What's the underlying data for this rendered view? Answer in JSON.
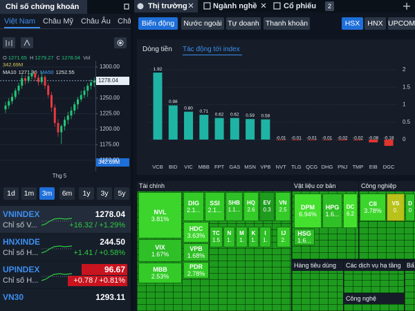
{
  "left_panel": {
    "title": "Chỉ số chứng khoán",
    "regions": [
      "Việt Nam",
      "Châu Mỹ",
      "Châu Âu",
      "Châ"
    ],
    "active_region": 0,
    "price_chart": {
      "type": "candlestick",
      "legend": [
        {
          "label": "O",
          "value": 1271.65
        },
        {
          "label": "H",
          "value": 1279.27
        },
        {
          "label": "C",
          "value": 1278.04
        },
        {
          "label": "Vol"
        }
      ],
      "volume": "342.69M",
      "ma": [
        {
          "name": "MA10",
          "value": "1271.90",
          "color": "#e8e8e8"
        },
        {
          "name": "MA50",
          "value": "1252.55",
          "color": "#4aa3ff"
        }
      ],
      "ylim": [
        1141,
        1310
      ],
      "yticks": [
        {
          "value": 1300,
          "label": "1300.00"
        },
        {
          "value": 1250,
          "label": "1250.00"
        },
        {
          "value": 1225,
          "label": "1225.00"
        },
        {
          "value": 1200,
          "label": "1200.00"
        },
        {
          "value": 1175,
          "label": "1175.00"
        },
        {
          "value": 1150,
          "label": "1150.00"
        }
      ],
      "last_price": 1278.04,
      "x_label": "Thg 5",
      "up_color": "#22c77a",
      "down_color": "#ea3943",
      "candles": [
        [
          1232,
          1244,
          1226,
          1238
        ],
        [
          1238,
          1250,
          1233,
          1245
        ],
        [
          1245,
          1258,
          1240,
          1252
        ],
        [
          1252,
          1266,
          1248,
          1262
        ],
        [
          1262,
          1275,
          1256,
          1270
        ],
        [
          1270,
          1288,
          1265,
          1282
        ],
        [
          1282,
          1286,
          1272,
          1278
        ],
        [
          1278,
          1292,
          1274,
          1285
        ],
        [
          1285,
          1296,
          1280,
          1290
        ],
        [
          1290,
          1294,
          1278,
          1283
        ],
        [
          1283,
          1288,
          1270,
          1276
        ],
        [
          1276,
          1291,
          1272,
          1284
        ],
        [
          1284,
          1287,
          1265,
          1270
        ],
        [
          1270,
          1274,
          1250,
          1255
        ],
        [
          1255,
          1260,
          1228,
          1235
        ],
        [
          1235,
          1240,
          1204,
          1210
        ],
        [
          1210,
          1216,
          1188,
          1195
        ],
        [
          1195,
          1208,
          1176,
          1205
        ],
        [
          1205,
          1220,
          1198,
          1215
        ],
        [
          1215,
          1228,
          1208,
          1222
        ],
        [
          1222,
          1236,
          1216,
          1230
        ],
        [
          1230,
          1244,
          1224,
          1240
        ],
        [
          1240,
          1252,
          1232,
          1248
        ],
        [
          1248,
          1262,
          1244,
          1255
        ],
        [
          1255,
          1268,
          1250,
          1262
        ],
        [
          1262,
          1274,
          1252,
          1270
        ],
        [
          1270,
          1280,
          1264,
          1275
        ],
        [
          1275,
          1283,
          1268,
          1278
        ]
      ]
    },
    "periods": [
      "1d",
      "1m",
      "3m",
      "6m",
      "1y",
      "3y",
      "5y"
    ],
    "active_period": 2,
    "indices": [
      {
        "name": "VNINDEX",
        "value": "1278.04",
        "desc": "Chỉ số V...",
        "change": "+16.32 / +1.29%"
      },
      {
        "name": "HNXINDE",
        "value": "244.50",
        "desc": "Chỉ số H...",
        "change": "+1.41 / +0.58%"
      },
      {
        "name": "UPINDEX",
        "value": "96.67",
        "desc": "Chỉ số H...",
        "change": "+0.78 / +0.81%",
        "highlight": true
      },
      {
        "name": "VN30",
        "value": "1293.11"
      }
    ]
  },
  "right_panel": {
    "tabs": [
      "Thị trường",
      "Ngành nghề",
      "Cổ phiếu"
    ],
    "tab_badge": "2",
    "filters": [
      "Biến động",
      "Nước ngoài",
      "Tự doanh",
      "Thanh khoản"
    ],
    "active_filter": 0,
    "exchanges": [
      "HSX",
      "HNX",
      "UPCOM"
    ],
    "active_exchange": 0,
    "subtabs": [
      "Dòng tiền",
      "Tác động tới index"
    ],
    "active_subtab": 1,
    "impact_chart": {
      "type": "bar",
      "categories": [
        "VCB",
        "BID",
        "VIC",
        "MBB",
        "FPT",
        "GAS",
        "MSN",
        "VPB",
        "NVT",
        "TLG",
        "QCG",
        "DHG",
        "PNJ",
        "TMP",
        "EIB",
        "DGC"
      ],
      "values": [
        1.92,
        0.98,
        0.8,
        0.71,
        0.62,
        0.62,
        0.59,
        0.58,
        -0.01,
        -0.01,
        -0.01,
        -0.01,
        -0.02,
        -0.02,
        -0.08,
        -0.18
      ],
      "value_labels": [
        "1.92",
        "0.98",
        "0.80",
        "0.71",
        "0.62",
        "0.62",
        "0.59",
        "0.58",
        "-0.01",
        "-0.01",
        "-0.01",
        "-0.01",
        "-0.02",
        "-0.02",
        "-0.08",
        "-0.18"
      ],
      "ylim": [
        -0.45,
        2.05
      ],
      "yticks": [
        2,
        1.5,
        1,
        0.5,
        0
      ],
      "grid": true,
      "positive_color": "#1fb3a4",
      "negative_color": "#e0342f"
    },
    "heatmap": {
      "sectors": [
        {
          "name": "Tài chính",
          "tiles": [
            {
              "symbol": "NVL",
              "change": "3.81%",
              "color": "#3bd52b"
            },
            {
              "symbol": "DIG",
              "change": "2.1...",
              "color": "#34cb29"
            },
            {
              "symbol": "SSI",
              "change": "2.1...",
              "color": "#34cb29"
            },
            {
              "symbol": "SHB",
              "change": "1.1...",
              "color": "#2fbf27"
            },
            {
              "symbol": "HQ",
              "change": "2.6",
              "color": "#34cb29"
            },
            {
              "symbol": "EV",
              "change": "0.3",
              "color": "#1f9c1f"
            },
            {
              "symbol": "VN",
              "change": "2.5",
              "color": "#34cb29"
            },
            {
              "symbol": "VIX",
              "change": "1.67%",
              "color": "#2fbf27"
            },
            {
              "symbol": "HDC",
              "change": "3.63%",
              "color": "#3bd52b"
            },
            {
              "symbol": "TC",
              "change": "1.5",
              "color": "#2fbf27"
            },
            {
              "symbol": "N",
              "change": "1.",
              "color": "#2fbf27"
            },
            {
              "symbol": "M",
              "change": "1.",
              "color": "#2fbf27"
            },
            {
              "symbol": "K",
              "change": "1.",
              "color": "#2fbf27"
            },
            {
              "symbol": "I",
              "change": "1.",
              "color": "#2fbf27"
            },
            {
              "symbol": "IJ",
              "change": "2.",
              "color": "#34cb29"
            },
            {
              "symbol": "MBB",
              "change": "2.53%",
              "color": "#34cb29"
            },
            {
              "symbol": "VPB",
              "change": "1.68%",
              "color": "#2fbf27"
            },
            {
              "symbol": "PDR",
              "change": "2.78%",
              "color": "#34cb29"
            }
          ]
        },
        {
          "name": "Vật liệu cơ bản",
          "tiles": [
            {
              "symbol": "DPM",
              "change": "6.94%",
              "color": "#44e02e"
            },
            {
              "symbol": "HPG",
              "change": "1.6...",
              "color": "#2fbf27"
            },
            {
              "symbol": "DC",
              "change": "6.2",
              "color": "#44e02e"
            },
            {
              "symbol": "HSG",
              "change": "1.6...",
              "color": "#2fbf27"
            }
          ]
        },
        {
          "name": "Công nghiệp",
          "tiles": [
            {
              "symbol": "CII",
              "change": "3.78%",
              "color": "#3bd52b"
            },
            {
              "symbol": "VS",
              "change": "0.",
              "color": "#b8c21a"
            },
            {
              "symbol": "D",
              "change": "0",
              "color": "#2fbf27"
            }
          ]
        },
        {
          "name": "Hàng tiêu dùng",
          "tiles": []
        },
        {
          "name": "Các dịch vụ hạ tầng",
          "tiles": []
        },
        {
          "name": "Công nghệ",
          "tiles": []
        },
        {
          "name": "Bấ",
          "tiles": []
        }
      ]
    }
  }
}
